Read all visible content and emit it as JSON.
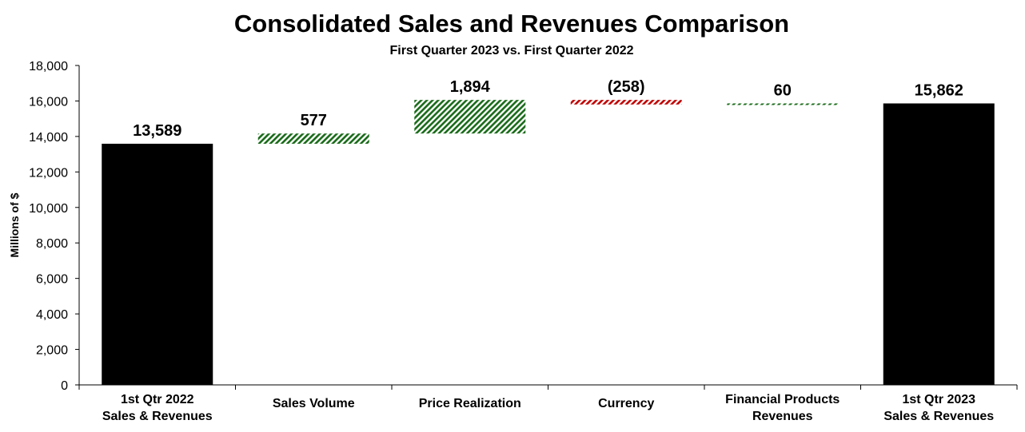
{
  "chart_data": {
    "type": "waterfall",
    "title": "Consolidated Sales and Revenues Comparison",
    "subtitle": "First Quarter 2023 vs. First Quarter 2022",
    "ylabel": "Millions of $",
    "ylim": [
      0,
      18000
    ],
    "yticks": [
      0,
      2000,
      4000,
      6000,
      8000,
      10000,
      12000,
      14000,
      16000,
      18000
    ],
    "ytick_labels": [
      "0",
      "2,000",
      "4,000",
      "6,000",
      "8,000",
      "10,000",
      "12,000",
      "14,000",
      "16,000",
      "18,000"
    ],
    "grid": false,
    "categories": [
      [
        "1st Qtr 2022",
        "Sales & Revenues"
      ],
      [
        "Sales Volume"
      ],
      [
        "Price Realization"
      ],
      [
        "Currency"
      ],
      [
        "Financial Products",
        "Revenues"
      ],
      [
        "1st Qtr 2023",
        "Sales & Revenues"
      ]
    ],
    "values": [
      13589,
      577,
      1894,
      -258,
      60,
      15862
    ],
    "kinds": [
      "total",
      "delta",
      "delta",
      "delta",
      "delta",
      "total"
    ],
    "data_labels": [
      "13,589",
      "577",
      "1,894",
      "(258)",
      "60",
      "15,862"
    ],
    "colors": {
      "total": "#000000",
      "increase": "#1a6b1a",
      "decrease": "#c00000"
    }
  }
}
